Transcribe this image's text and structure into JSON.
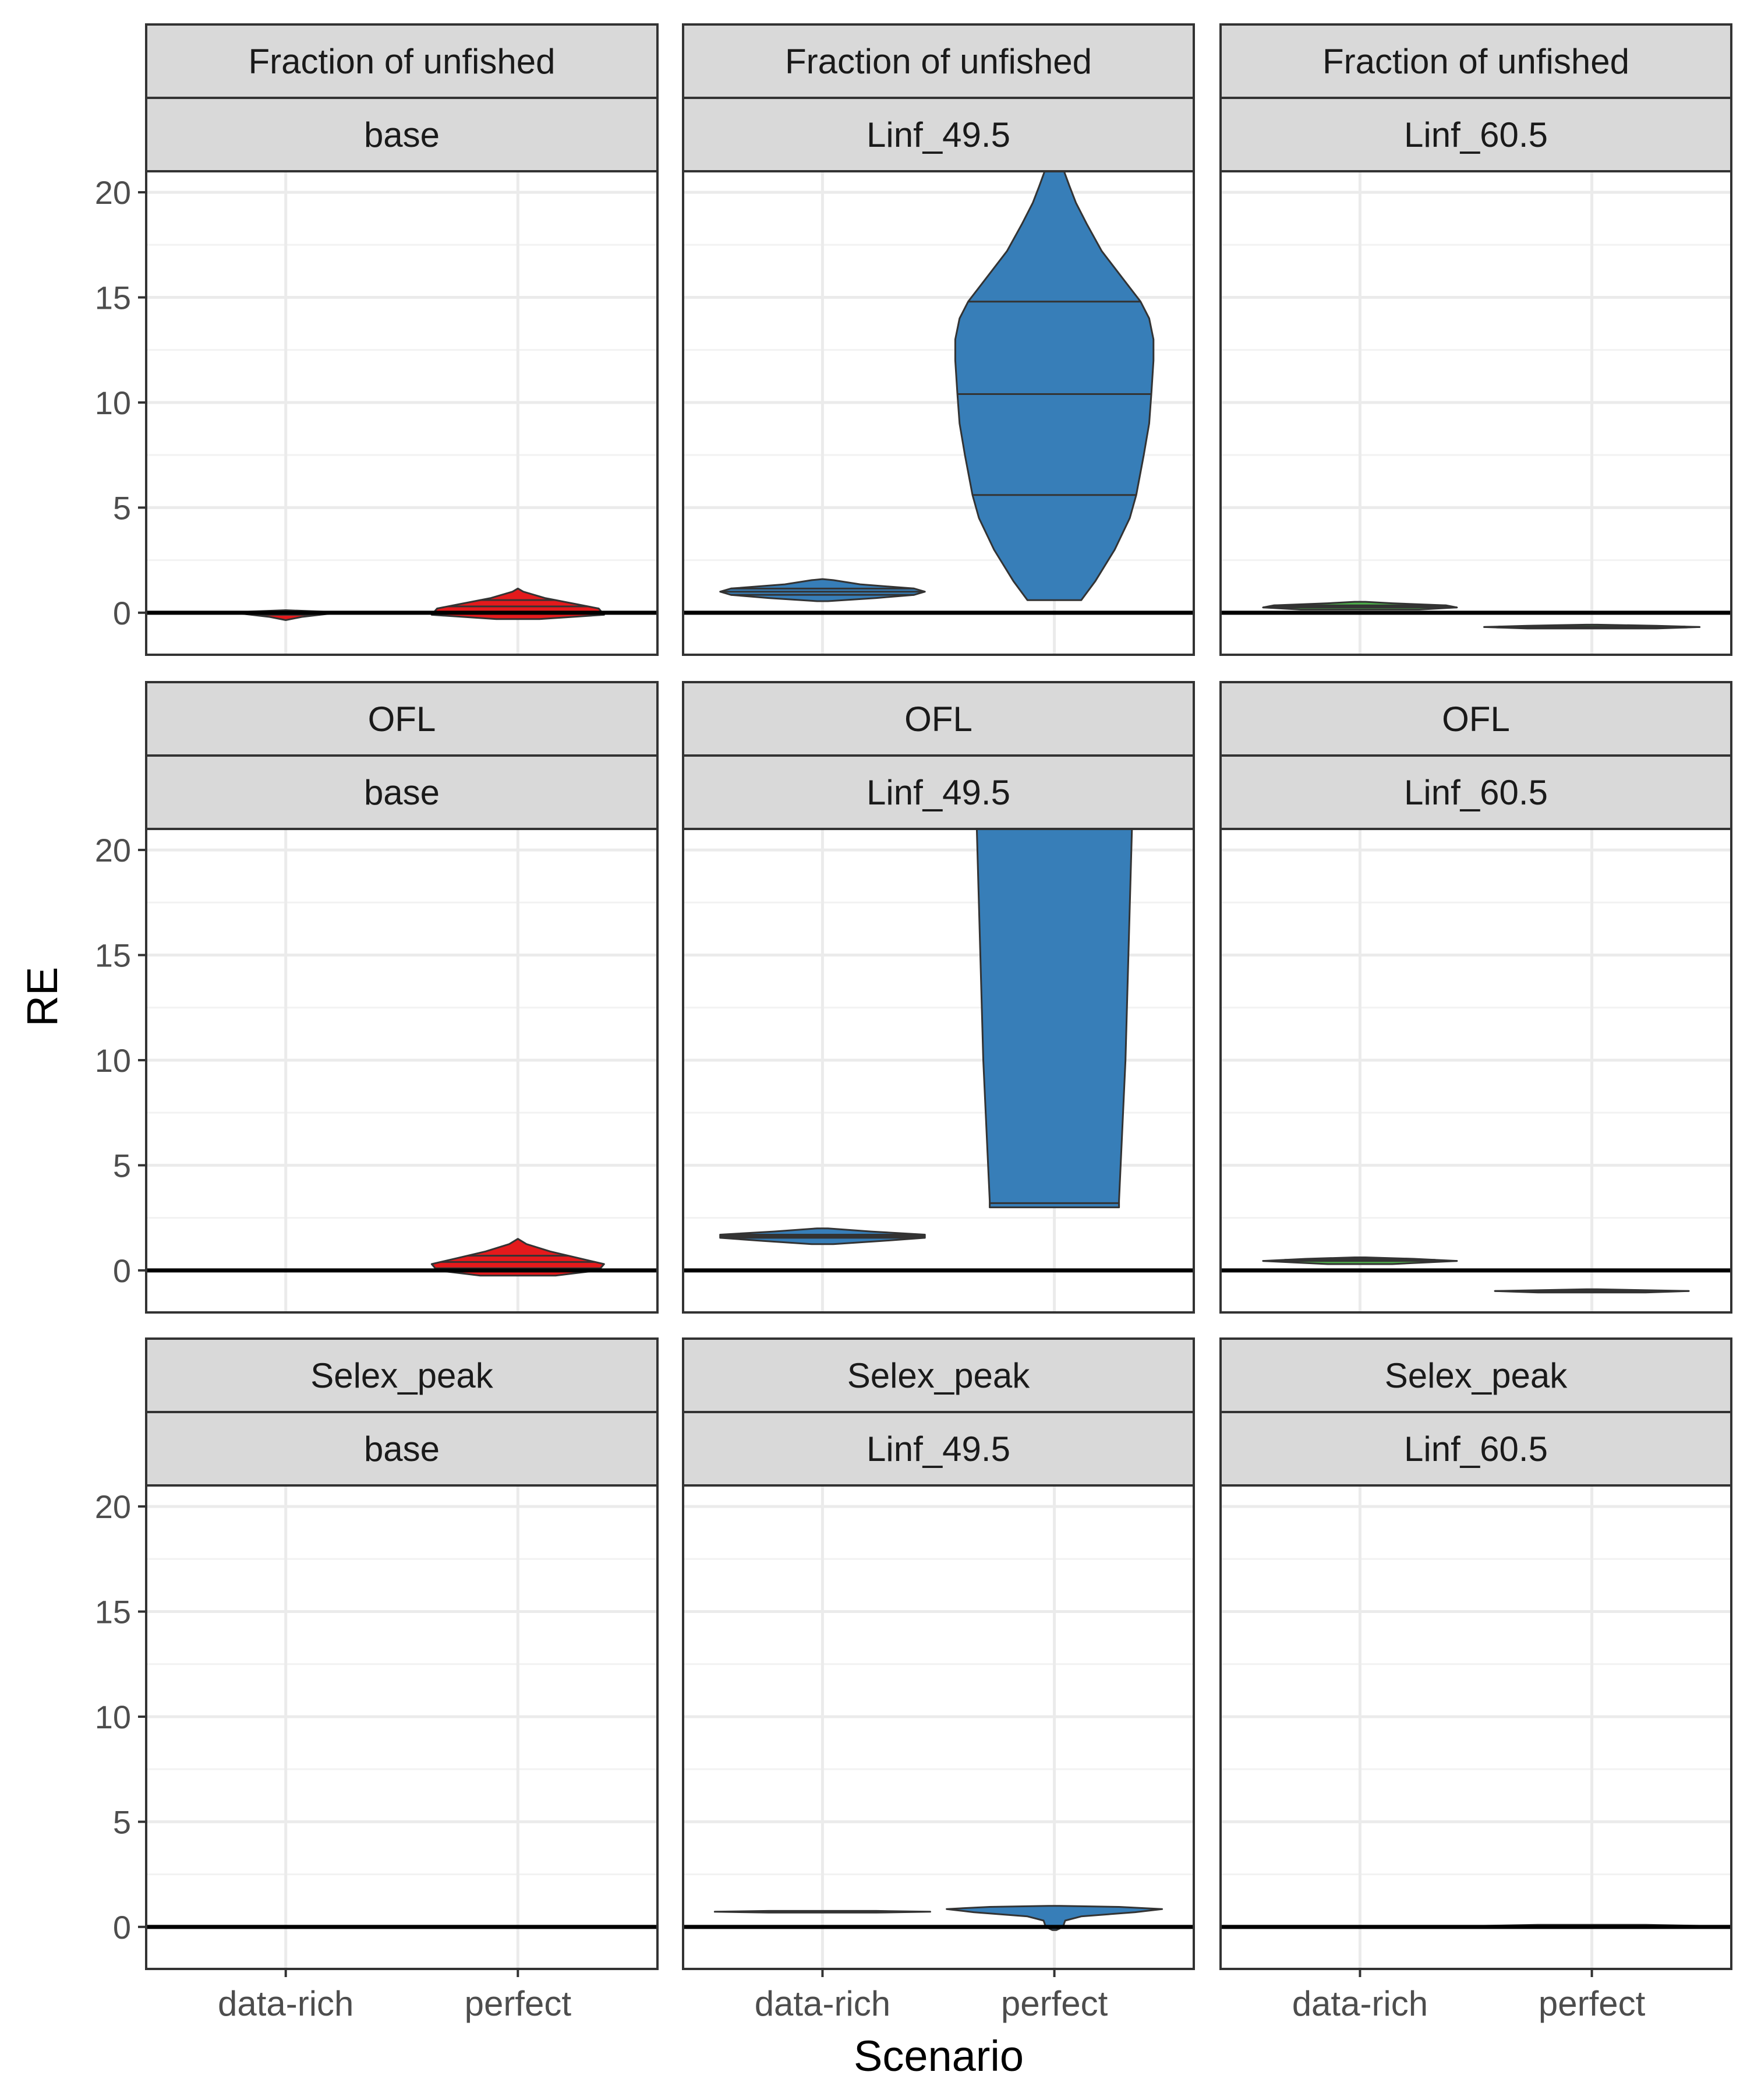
{
  "chart_data": {
    "type": "violin",
    "layout": "facet_grid",
    "xlabel": "Scenario",
    "ylabel": "RE",
    "categories": [
      "data-rich",
      "perfect"
    ],
    "ylim": [
      -2,
      21
    ],
    "yticks": [
      0,
      5,
      10,
      15,
      20
    ],
    "reference_line_y": 0,
    "grid": true,
    "row_strips": [
      "Fraction of unfished",
      "OFL",
      "Selex_peak"
    ],
    "col_strips": [
      "base",
      "Linf_49.5",
      "Linf_60.5"
    ],
    "colors": {
      "base": "#e41a1c",
      "Linf_49.5": "#377eb8",
      "Linf_60.5": "#4daf4a",
      "outline": "#333333",
      "strip_fill": "#d9d9d9",
      "gridline": "#ebebeb"
    },
    "panels": [
      {
        "row": "Fraction of unfished",
        "col": "base",
        "violins": [
          {
            "category": "data-rich",
            "profile": [
              [
                -0.35,
                0
              ],
              [
                -0.2,
                0.15
              ],
              [
                -0.05,
                0.4
              ],
              [
                0.05,
                0.35
              ],
              [
                0.12,
                0
              ]
            ],
            "quantiles": [
              -0.1,
              0,
              0.05
            ]
          },
          {
            "category": "perfect",
            "profile": [
              [
                -0.3,
                0.2
              ],
              [
                -0.1,
                0.8
              ],
              [
                0.2,
                0.75
              ],
              [
                0.4,
                0.55
              ],
              [
                0.7,
                0.25
              ],
              [
                1,
                0.05
              ],
              [
                1.15,
                0
              ]
            ],
            "quantiles": [
              0,
              0.3,
              0.6
            ]
          }
        ]
      },
      {
        "row": "Fraction of unfished",
        "col": "Linf_49.5",
        "violins": [
          {
            "category": "data-rich",
            "profile": [
              [
                0.55,
                0.05
              ],
              [
                0.7,
                0.5
              ],
              [
                0.85,
                0.85
              ],
              [
                1.0,
                0.95
              ],
              [
                1.15,
                0.85
              ],
              [
                1.35,
                0.35
              ],
              [
                1.55,
                0.1
              ],
              [
                1.6,
                0
              ]
            ],
            "quantiles": [
              0.85,
              1.0,
              1.15
            ]
          },
          {
            "category": "perfect",
            "profile": [
              [
                0.6,
                0.25
              ],
              [
                1.5,
                0.38
              ],
              [
                3,
                0.56
              ],
              [
                4.5,
                0.7
              ],
              [
                5.6,
                0.76
              ],
              [
                7.5,
                0.83
              ],
              [
                9,
                0.88
              ],
              [
                10.4,
                0.9
              ],
              [
                12,
                0.92
              ],
              [
                13,
                0.92
              ],
              [
                14,
                0.88
              ],
              [
                14.8,
                0.8
              ],
              [
                16,
                0.62
              ],
              [
                17.2,
                0.44
              ],
              [
                18.5,
                0.3
              ],
              [
                19.5,
                0.2
              ],
              [
                20.3,
                0.14
              ],
              [
                21,
                0.09
              ]
            ],
            "quantiles": [
              5.6,
              10.4,
              14.8
            ]
          }
        ]
      },
      {
        "row": "Fraction of unfished",
        "col": "Linf_60.5",
        "violins": [
          {
            "category": "data-rich",
            "profile": [
              [
                0.15,
                0.55
              ],
              [
                0.25,
                0.9
              ],
              [
                0.35,
                0.8
              ],
              [
                0.45,
                0.3
              ],
              [
                0.52,
                0.05
              ]
            ],
            "quantiles": [
              0.25,
              0.3,
              0.35
            ]
          },
          {
            "category": "perfect",
            "profile": [
              [
                -0.75,
                0.6
              ],
              [
                -0.68,
                1.0
              ],
              [
                -0.62,
                0.6
              ],
              [
                -0.57,
                0.05
              ]
            ],
            "quantiles": [
              -0.7,
              -0.68,
              -0.66
            ]
          }
        ]
      },
      {
        "row": "OFL",
        "col": "base",
        "violins": [
          {
            "category": "data-rich",
            "profile": [
              [
                -0.04,
                0.5
              ],
              [
                0,
                1.0
              ],
              [
                0.04,
                0.5
              ]
            ],
            "quantiles": []
          },
          {
            "category": "perfect",
            "profile": [
              [
                -0.25,
                0.35
              ],
              [
                0,
                0.75
              ],
              [
                0.3,
                0.8
              ],
              [
                0.6,
                0.55
              ],
              [
                0.9,
                0.3
              ],
              [
                1.25,
                0.08
              ],
              [
                1.5,
                0
              ]
            ],
            "quantiles": [
              0.1,
              0.4,
              0.7
            ]
          }
        ]
      },
      {
        "row": "OFL",
        "col": "Linf_49.5",
        "violins": [
          {
            "category": "data-rich",
            "profile": [
              [
                1.25,
                0.1
              ],
              [
                1.4,
                0.55
              ],
              [
                1.55,
                0.95
              ],
              [
                1.7,
                0.95
              ],
              [
                1.85,
                0.45
              ],
              [
                2.0,
                0.05
              ]
            ],
            "quantiles": [
              1.55,
              1.62,
              1.7
            ]
          },
          {
            "category": "perfect",
            "profile": [
              [
                3.0,
                0.6
              ],
              [
                3.3,
                0.6
              ],
              [
                10,
                0.66
              ],
              [
                21,
                0.72
              ]
            ],
            "quantiles": [
              3.2
            ]
          }
        ]
      },
      {
        "row": "OFL",
        "col": "Linf_60.5",
        "violins": [
          {
            "category": "data-rich",
            "profile": [
              [
                0.3,
                0.3
              ],
              [
                0.45,
                0.9
              ],
              [
                0.55,
                0.5
              ],
              [
                0.62,
                0.05
              ]
            ],
            "quantiles": [
              0.45,
              0.5,
              0.55
            ]
          },
          {
            "category": "perfect",
            "profile": [
              [
                -1.05,
                0.5
              ],
              [
                -0.98,
                0.9
              ],
              [
                -0.9,
                0.05
              ]
            ],
            "quantiles": [
              -1.0,
              -0.98,
              -0.96
            ]
          }
        ]
      },
      {
        "row": "Selex_peak",
        "col": "base",
        "violins": [
          {
            "category": "data-rich",
            "profile": [
              [
                -0.04,
                0.5
              ],
              [
                0,
                1.0
              ],
              [
                0.04,
                0.5
              ]
            ],
            "quantiles": []
          },
          {
            "category": "perfect",
            "profile": [
              [
                -0.04,
                0.5
              ],
              [
                0,
                1.0
              ],
              [
                0.04,
                0.5
              ]
            ],
            "quantiles": []
          }
        ]
      },
      {
        "row": "Selex_peak",
        "col": "Linf_49.5",
        "violins": [
          {
            "category": "data-rich",
            "profile": [
              [
                0.68,
                0.5
              ],
              [
                0.72,
                1.0
              ],
              [
                0.76,
                0.5
              ]
            ],
            "quantiles": []
          },
          {
            "category": "perfect",
            "profile": [
              [
                -0.15,
                0.02
              ],
              [
                0,
                0.08
              ],
              [
                0.3,
                0.1
              ],
              [
                0.5,
                0.25
              ],
              [
                0.7,
                0.75
              ],
              [
                0.85,
                1.0
              ],
              [
                0.95,
                0.6
              ],
              [
                1.0,
                0.05
              ]
            ],
            "quantiles": []
          }
        ]
      },
      {
        "row": "Selex_peak",
        "col": "Linf_60.5",
        "violins": [
          {
            "category": "data-rich",
            "profile": [
              [
                -0.04,
                0.5
              ],
              [
                0,
                1.0
              ],
              [
                0.04,
                0.5
              ]
            ],
            "quantiles": []
          },
          {
            "category": "perfect",
            "profile": [
              [
                0.0,
                0.5
              ],
              [
                0.05,
                1.0
              ],
              [
                0.1,
                0.5
              ]
            ],
            "quantiles": []
          }
        ]
      }
    ]
  }
}
